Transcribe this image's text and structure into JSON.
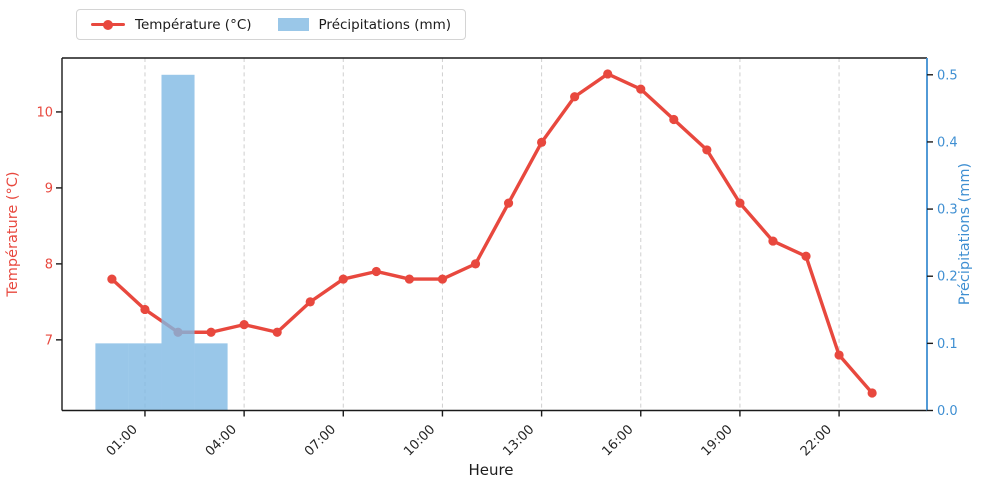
{
  "legend": {
    "items": [
      {
        "label": "Température (°C)",
        "swatch": "line-marker",
        "color": "#e8483e"
      },
      {
        "label": "Précipitations (mm)",
        "swatch": "patch",
        "color": "#9ac7e8"
      }
    ],
    "position": "top-left"
  },
  "chart_data": {
    "type": "line",
    "xlabel": "Heure",
    "ylabel_left": "Température (°C)",
    "ylabel_right": "Précipitations (mm)",
    "x_hours": [
      0,
      1,
      2,
      3,
      4,
      5,
      6,
      7,
      8,
      9,
      10,
      11,
      12,
      13,
      14,
      15,
      16,
      17,
      18,
      19,
      20,
      21,
      22,
      23
    ],
    "series": [
      {
        "name": "Température (°C)",
        "type": "line",
        "axis": "left",
        "color": "#e8483e",
        "values": [
          7.8,
          7.4,
          7.1,
          7.1,
          7.2,
          7.1,
          7.5,
          7.8,
          7.9,
          7.8,
          7.8,
          8.0,
          8.8,
          9.6,
          10.2,
          10.5,
          10.3,
          9.9,
          9.5,
          8.8,
          8.3,
          8.1,
          6.8,
          6.3
        ]
      },
      {
        "name": "Précipitations (mm)",
        "type": "bar",
        "axis": "right",
        "color": "#9ac7e8",
        "values": [
          0.1,
          0.1,
          0.5,
          0.1,
          0,
          0,
          0,
          0,
          0,
          0,
          0,
          0,
          0,
          0,
          0,
          0,
          0,
          0,
          0,
          0,
          0,
          0,
          0,
          0
        ]
      }
    ],
    "x_tick_hours": [
      1,
      4,
      7,
      10,
      13,
      16,
      19,
      22
    ],
    "x_tick_labels": [
      "01:00",
      "04:00",
      "07:00",
      "10:00",
      "13:00",
      "16:00",
      "19:00",
      "22:00"
    ],
    "left_tick_values": [
      7,
      8,
      9,
      10
    ],
    "left_tick_labels": [
      "7",
      "8",
      "9",
      "10"
    ],
    "right_tick_values": [
      0,
      0.1,
      0.2,
      0.3,
      0.4,
      0.5
    ],
    "right_tick_labels": [
      "0.0",
      "0.1",
      "0.2",
      "0.3",
      "0.4",
      "0.5"
    ],
    "xlim": [
      -1.51,
      24.66
    ],
    "ylim_left": [
      6.07,
      10.71
    ],
    "ylim_right": [
      0,
      0.525
    ],
    "grid": "vertical-dashed",
    "legend_position": "upper-left-outside",
    "colors": {
      "temperature": "#e8483e",
      "precipitation_bar": "#7fb9e3",
      "precipitation_bar_flat": "#9ac7e8",
      "right_axis": "#3f8fd2",
      "grid": "#cfcfcf",
      "spine": "#1a1a1a",
      "tick_text": "#262626"
    }
  }
}
